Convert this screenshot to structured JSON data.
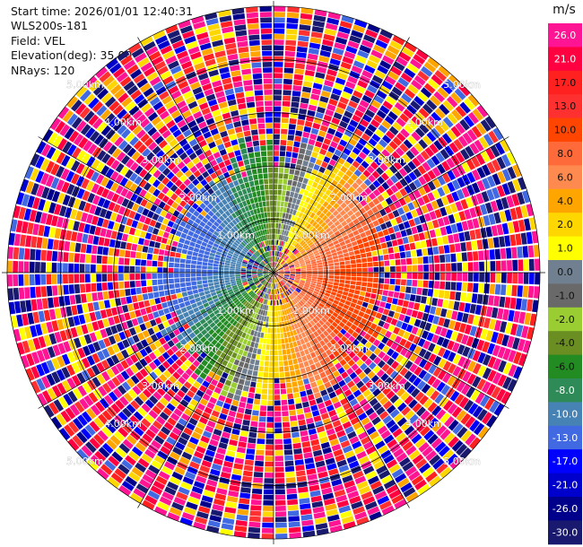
{
  "header": {
    "start_time": "Start time: 2026/01/01 12:40:31",
    "instrument": "WLS200s-181",
    "field": "Field: VEL",
    "elevation": "Elevation(deg): 35.00",
    "nrays": "NRays: 120"
  },
  "chart_data": {
    "type": "heatmap",
    "projection": "polar PPI",
    "field": "VEL",
    "units": "m/s",
    "rays": 120,
    "range_rings_km": [
      1.0,
      2.0,
      3.0,
      4.0,
      5.0
    ],
    "range_ring_labels": [
      "1.00km",
      "2.00km",
      "3.00km",
      "4.00km",
      "5.00km"
    ],
    "max_range_km": 5.1,
    "coherent_range_km": 2.1,
    "grid": true,
    "colorbar": {
      "title": "m/s",
      "ticks": [
        "26.0",
        "21.0",
        "17.0",
        "13.0",
        "10.0",
        "8.0",
        "6.0",
        "4.0",
        "2.0",
        "1.0",
        "0.0",
        "-1.0",
        "-2.0",
        "-4.0",
        "-6.0",
        "-8.0",
        "-10.0",
        "-13.0",
        "-17.0",
        "-21.0",
        "-26.0",
        "-30.0"
      ],
      "colors": [
        "#ff1493",
        "#ff0040",
        "#ff2020",
        "#ff3030",
        "#ff4500",
        "#ff6a3a",
        "#ff8a50",
        "#ffa500",
        "#ffd700",
        "#ffff00",
        "#708090",
        "#696969",
        "#9acd32",
        "#6b8e23",
        "#228b22",
        "#2e8b57",
        "#4682b4",
        "#4169e1",
        "#0000ff",
        "#0000cd",
        "#00008b",
        "#191970"
      ]
    },
    "wind_pattern": {
      "positive_velocity_azimuth_deg": 105,
      "negative_velocity_azimuth_deg": 285,
      "peak_velocity_ms": 13,
      "noise_beyond_coherent_range": true
    }
  }
}
